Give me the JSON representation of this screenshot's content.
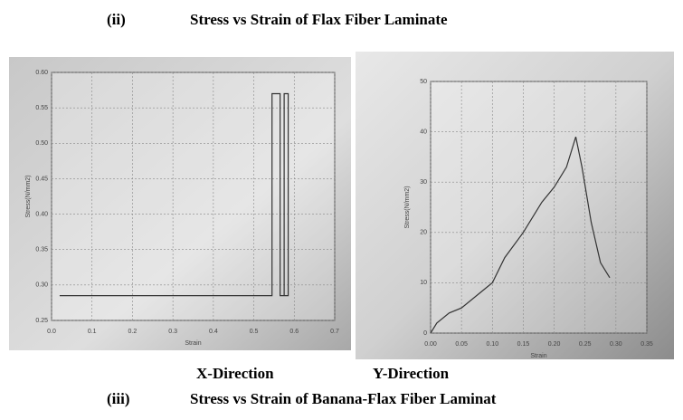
{
  "heading": {
    "number": "(ii)",
    "title": "Stress vs Strain  of  Flax Fiber Laminate"
  },
  "captions": [
    "X-Direction",
    "Y-Direction"
  ],
  "next_heading": {
    "number": "(iii)",
    "title": "Stress vs Strain  of Banana-Flax Fiber Laminat"
  },
  "chart_data": [
    {
      "type": "line",
      "xlabel": "Strain",
      "ylabel": "Stress(N/mm2)",
      "color": "#333333",
      "grid": true,
      "xlim": [
        0,
        0.7
      ],
      "ylim": [
        0.25,
        0.6
      ],
      "xticks": [
        {
          "value": 0,
          "label": "0.0"
        },
        0.1,
        0.2,
        0.3,
        0.4,
        0.5,
        0.6,
        0.7
      ],
      "yticks": [
        0.25,
        {
          "value": 0.3,
          "label": "0.30"
        },
        0.35,
        {
          "value": 0.4,
          "label": "0.40"
        },
        0.45,
        {
          "value": 0.5,
          "label": "0.50"
        },
        0.55,
        {
          "value": 0.6,
          "label": "0.60"
        }
      ],
      "x": [
        0.02,
        0.545,
        0.545,
        0.565,
        0.565,
        0.585,
        0.585,
        0.575,
        0.575
      ],
      "values": [
        0.285,
        0.285,
        0.57,
        0.57,
        0.285,
        0.285,
        0.57,
        0.57,
        0.285
      ]
    },
    {
      "type": "line",
      "xlabel": "Strain",
      "ylabel": "Stress(N/mm2)",
      "color": "#333333",
      "grid": true,
      "xlim": [
        0,
        0.35
      ],
      "ylim": [
        0,
        50
      ],
      "xticks": [
        {
          "value": 0,
          "label": "0.00"
        },
        0.05,
        {
          "value": 0.1,
          "label": "0.10"
        },
        0.15,
        {
          "value": 0.2,
          "label": "0.20"
        },
        0.25,
        {
          "value": 0.3,
          "label": "0.30"
        },
        0.35
      ],
      "yticks": [
        0,
        10,
        20,
        30,
        40,
        50
      ],
      "x": [
        0,
        0.01,
        0.03,
        0.05,
        0.08,
        0.1,
        0.12,
        0.15,
        0.18,
        0.2,
        0.22,
        0.235,
        0.245,
        0.26,
        0.275,
        0.285,
        0.29
      ],
      "values": [
        0,
        2,
        4,
        5,
        8,
        10,
        15,
        20,
        26,
        29,
        33,
        39,
        33,
        22,
        14,
        12,
        11
      ]
    }
  ]
}
